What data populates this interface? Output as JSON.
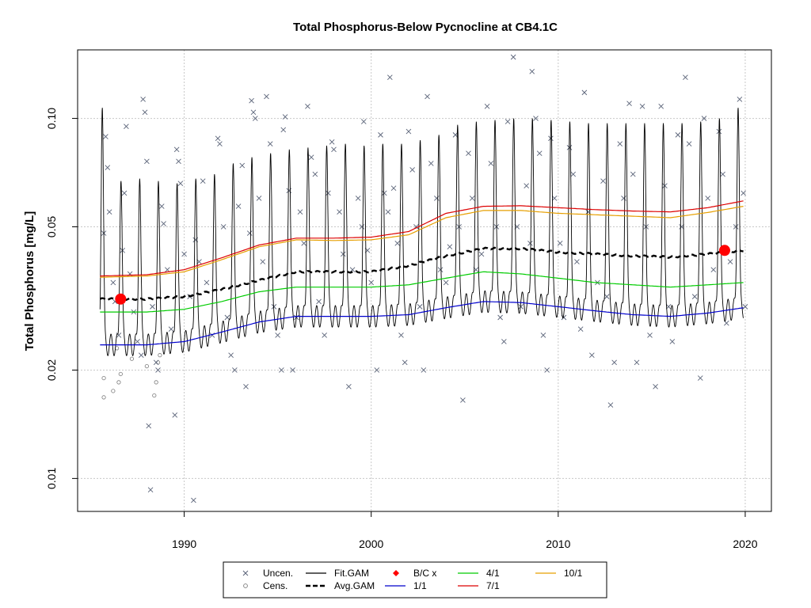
{
  "chart_data": {
    "type": "scatter",
    "title": "Total Phosphorus-Below Pycnocline at CB4.1C",
    "xlabel": "",
    "ylabel": "Total Phosphorus [mg/L]",
    "log_y": true,
    "xlim": [
      1984.3,
      2021.4
    ],
    "ylim": [
      0.0081,
      0.155
    ],
    "grid": true,
    "x_ticks": [
      1990,
      2000,
      2010,
      2020
    ],
    "x_tick_labels": [
      "1990",
      "2000",
      "2010",
      "2020"
    ],
    "y_ticks": [
      0.01,
      0.02,
      0.05,
      0.1
    ],
    "y_tick_labels": [
      "0.01",
      "0.02",
      "0.05",
      "0.10"
    ],
    "legend": {
      "placement": "bottom-center",
      "entries": [
        {
          "label": "Uncen.",
          "symbol": "x",
          "color": "#5a6378"
        },
        {
          "label": "Cens.",
          "symbol": "circle",
          "color": "#7a7a7a"
        },
        {
          "label": "Fit.GAM",
          "symbol": "line",
          "color": "#000000"
        },
        {
          "label": "Avg.GAM",
          "symbol": "dashed",
          "color": "#000000"
        },
        {
          "label": "B/C x",
          "symbol": "diamond",
          "color": "#ff0000"
        },
        {
          "label": "1/1",
          "symbol": "line",
          "color": "#0000cc"
        },
        {
          "label": "4/1",
          "symbol": "line",
          "color": "#00cc00"
        },
        {
          "label": "7/1",
          "symbol": "line",
          "color": "#dd0000"
        },
        {
          "label": "10/1",
          "symbol": "line",
          "color": "#e69f00"
        }
      ]
    },
    "colors": {
      "uncensored": "#5a6378",
      "censored": "#7a7a7a",
      "fit": "#000000",
      "avg": "#000000",
      "bc": "#ff0000",
      "jan1": "#0000cc",
      "apr1": "#00cc00",
      "jul1": "#dd0000",
      "oct1": "#e69f00"
    },
    "seasonal_curves": {
      "x": [
        1985.5,
        1988,
        1990,
        1992,
        1994,
        1996,
        1998,
        2000,
        2002,
        2004,
        2006,
        2008,
        2010,
        2012,
        2014,
        2016,
        2018,
        2019.9
      ],
      "jan1": [
        0.0235,
        0.0235,
        0.024,
        0.0255,
        0.0272,
        0.0282,
        0.0282,
        0.0282,
        0.0285,
        0.0298,
        0.031,
        0.0308,
        0.03,
        0.0292,
        0.0285,
        0.0282,
        0.0288,
        0.0298
      ],
      "apr1": [
        0.029,
        0.029,
        0.0295,
        0.031,
        0.033,
        0.034,
        0.034,
        0.034,
        0.0345,
        0.036,
        0.0375,
        0.037,
        0.036,
        0.035,
        0.0345,
        0.034,
        0.0345,
        0.035
      ],
      "jul1": [
        0.0365,
        0.0368,
        0.038,
        0.041,
        0.0445,
        0.0465,
        0.0465,
        0.0468,
        0.0485,
        0.0545,
        0.057,
        0.0572,
        0.0565,
        0.0558,
        0.0553,
        0.055,
        0.0565,
        0.059
      ],
      "oct1": [
        0.0362,
        0.0365,
        0.0375,
        0.0405,
        0.044,
        0.046,
        0.0458,
        0.046,
        0.0475,
        0.053,
        0.0555,
        0.0555,
        0.0545,
        0.054,
        0.0535,
        0.053,
        0.0548,
        0.057
      ]
    },
    "avg_gam": {
      "x": [
        1985.5,
        1988,
        1990,
        1992,
        1994,
        1996,
        1998,
        2000,
        2002,
        2004,
        2006,
        2008,
        2010,
        2012,
        2014,
        2016,
        2018,
        2019.9
      ],
      "y": [
        0.0315,
        0.0315,
        0.032,
        0.0335,
        0.0355,
        0.0375,
        0.0375,
        0.0375,
        0.039,
        0.0415,
        0.0435,
        0.0435,
        0.0425,
        0.042,
        0.0415,
        0.0412,
        0.042,
        0.043
      ]
    },
    "fit_gam": {
      "start_year": 1985.5,
      "end_year": 2019.9,
      "peak_years": [
        1986.0,
        1987.0,
        1988.0,
        1989.0,
        1990.0,
        1991.0,
        1992.0,
        1993.0,
        1994.0,
        1995.0,
        1996.0,
        1997.0,
        1998.0,
        1999.0,
        2000.0,
        2001.0,
        2002.0,
        2003.0,
        2004.0,
        2005.0,
        2006.0,
        2007.0,
        2008.0,
        2009.0,
        2010.0,
        2011.0,
        2012.0,
        2013.0,
        2014.0,
        2015.0,
        2016.0,
        2017.0,
        2018.0,
        2019.0
      ],
      "peak_values": [
        0.067,
        0.068,
        0.067,
        0.066,
        0.068,
        0.07,
        0.075,
        0.078,
        0.08,
        0.082,
        0.083,
        0.084,
        0.085,
        0.084,
        0.085,
        0.085,
        0.087,
        0.09,
        0.096,
        0.098,
        0.099,
        0.1,
        0.1,
        0.099,
        0.098,
        0.097,
        0.097,
        0.097,
        0.097,
        0.097,
        0.097,
        0.098,
        0.1,
        0.107
      ]
    },
    "bc_points": [
      {
        "x": 1986.6,
        "y": 0.0315
      },
      {
        "x": 2018.9,
        "y": 0.043
      }
    ],
    "uncensored_points": [
      [
        1985.7,
        0.048
      ],
      [
        1985.8,
        0.089
      ],
      [
        1985.9,
        0.073
      ],
      [
        1986.0,
        0.055
      ],
      [
        1986.2,
        0.035
      ],
      [
        1986.3,
        0.031
      ],
      [
        1986.5,
        0.025
      ],
      [
        1986.7,
        0.043
      ],
      [
        1986.8,
        0.062
      ],
      [
        1986.9,
        0.095
      ],
      [
        1987.1,
        0.037
      ],
      [
        1987.3,
        0.029
      ],
      [
        1987.5,
        0.024
      ],
      [
        1987.7,
        0.022
      ],
      [
        1987.8,
        0.113
      ],
      [
        1987.9,
        0.104
      ],
      [
        1988.0,
        0.076
      ],
      [
        1988.1,
        0.014
      ],
      [
        1988.2,
        0.0093
      ],
      [
        1988.3,
        0.03
      ],
      [
        1988.5,
        0.021
      ],
      [
        1988.6,
        0.02
      ],
      [
        1988.8,
        0.057
      ],
      [
        1988.9,
        0.051
      ],
      [
        1989.1,
        0.038
      ],
      [
        1989.3,
        0.026
      ],
      [
        1989.5,
        0.015
      ],
      [
        1989.6,
        0.082
      ],
      [
        1989.7,
        0.076
      ],
      [
        1989.8,
        0.066
      ],
      [
        1990.0,
        0.042
      ],
      [
        1990.3,
        0.032
      ],
      [
        1990.5,
        0.0087
      ],
      [
        1990.6,
        0.046
      ],
      [
        1990.8,
        0.04
      ],
      [
        1991.0,
        0.067
      ],
      [
        1991.2,
        0.035
      ],
      [
        1991.5,
        0.025
      ],
      [
        1991.8,
        0.088
      ],
      [
        1991.9,
        0.085
      ],
      [
        1992.1,
        0.05
      ],
      [
        1992.3,
        0.028
      ],
      [
        1992.5,
        0.022
      ],
      [
        1992.7,
        0.02
      ],
      [
        1992.9,
        0.057
      ],
      [
        1993.1,
        0.074
      ],
      [
        1993.3,
        0.018
      ],
      [
        1993.5,
        0.048
      ],
      [
        1993.6,
        0.112
      ],
      [
        1993.7,
        0.104
      ],
      [
        1993.8,
        0.1
      ],
      [
        1994.0,
        0.06
      ],
      [
        1994.2,
        0.04
      ],
      [
        1994.4,
        0.115
      ],
      [
        1994.6,
        0.085
      ],
      [
        1994.8,
        0.03
      ],
      [
        1995.0,
        0.025
      ],
      [
        1995.2,
        0.02
      ],
      [
        1995.3,
        0.093
      ],
      [
        1995.4,
        0.101
      ],
      [
        1995.6,
        0.063
      ],
      [
        1995.8,
        0.02
      ],
      [
        1996.0,
        0.028
      ],
      [
        1996.2,
        0.055
      ],
      [
        1996.4,
        0.045
      ],
      [
        1996.6,
        0.108
      ],
      [
        1996.8,
        0.078
      ],
      [
        1997.0,
        0.07
      ],
      [
        1997.2,
        0.031
      ],
      [
        1997.5,
        0.025
      ],
      [
        1997.7,
        0.062
      ],
      [
        1997.9,
        0.086
      ],
      [
        1998.0,
        0.082
      ],
      [
        1998.3,
        0.055
      ],
      [
        1998.5,
        0.042
      ],
      [
        1998.8,
        0.018
      ],
      [
        1999.0,
        0.038
      ],
      [
        1999.3,
        0.06
      ],
      [
        1999.5,
        0.05
      ],
      [
        1999.6,
        0.098
      ],
      [
        1999.8,
        0.043
      ],
      [
        2000.0,
        0.035
      ],
      [
        2000.3,
        0.02
      ],
      [
        2000.5,
        0.09
      ],
      [
        2000.7,
        0.062
      ],
      [
        2000.9,
        0.055
      ],
      [
        2001.0,
        0.13
      ],
      [
        2001.2,
        0.064
      ],
      [
        2001.4,
        0.045
      ],
      [
        2001.6,
        0.025
      ],
      [
        2001.8,
        0.021
      ],
      [
        2002.0,
        0.092
      ],
      [
        2002.2,
        0.072
      ],
      [
        2002.4,
        0.05
      ],
      [
        2002.6,
        0.03
      ],
      [
        2002.8,
        0.02
      ],
      [
        2003.0,
        0.115
      ],
      [
        2003.2,
        0.075
      ],
      [
        2003.5,
        0.06
      ],
      [
        2003.7,
        0.038
      ],
      [
        2004.0,
        0.035
      ],
      [
        2004.2,
        0.044
      ],
      [
        2004.5,
        0.09
      ],
      [
        2004.7,
        0.05
      ],
      [
        2004.9,
        0.0165
      ],
      [
        2005.2,
        0.08
      ],
      [
        2005.4,
        0.06
      ],
      [
        2005.6,
        0.038
      ],
      [
        2005.9,
        0.042
      ],
      [
        2006.2,
        0.108
      ],
      [
        2006.4,
        0.075
      ],
      [
        2006.7,
        0.05
      ],
      [
        2006.9,
        0.028
      ],
      [
        2007.1,
        0.024
      ],
      [
        2007.3,
        0.098
      ],
      [
        2007.6,
        0.148
      ],
      [
        2007.8,
        0.05
      ],
      [
        2008.0,
        0.03
      ],
      [
        2008.3,
        0.065
      ],
      [
        2008.5,
        0.045
      ],
      [
        2008.6,
        0.135
      ],
      [
        2008.8,
        0.1
      ],
      [
        2009.0,
        0.08
      ],
      [
        2009.2,
        0.025
      ],
      [
        2009.4,
        0.02
      ],
      [
        2009.6,
        0.088
      ],
      [
        2009.8,
        0.06
      ],
      [
        2010.1,
        0.045
      ],
      [
        2010.3,
        0.028
      ],
      [
        2010.6,
        0.083
      ],
      [
        2010.8,
        0.07
      ],
      [
        2011.0,
        0.04
      ],
      [
        2011.2,
        0.026
      ],
      [
        2011.4,
        0.118
      ],
      [
        2011.6,
        0.055
      ],
      [
        2011.8,
        0.022
      ],
      [
        2012.1,
        0.035
      ],
      [
        2012.4,
        0.067
      ],
      [
        2012.6,
        0.032
      ],
      [
        2012.8,
        0.016
      ],
      [
        2013.0,
        0.021
      ],
      [
        2013.3,
        0.085
      ],
      [
        2013.5,
        0.06
      ],
      [
        2013.8,
        0.11
      ],
      [
        2014.0,
        0.07
      ],
      [
        2014.2,
        0.021
      ],
      [
        2014.5,
        0.108
      ],
      [
        2014.7,
        0.05
      ],
      [
        2014.9,
        0.025
      ],
      [
        2015.2,
        0.018
      ],
      [
        2015.5,
        0.108
      ],
      [
        2015.7,
        0.065
      ],
      [
        2015.9,
        0.03
      ],
      [
        2016.1,
        0.024
      ],
      [
        2016.4,
        0.09
      ],
      [
        2016.6,
        0.05
      ],
      [
        2016.8,
        0.13
      ],
      [
        2017.0,
        0.085
      ],
      [
        2017.3,
        0.032
      ],
      [
        2017.6,
        0.019
      ],
      [
        2017.8,
        0.1
      ],
      [
        2018.0,
        0.06
      ],
      [
        2018.3,
        0.038
      ],
      [
        2018.6,
        0.092
      ],
      [
        2018.8,
        0.07
      ],
      [
        2019.0,
        0.027
      ],
      [
        2019.2,
        0.04
      ],
      [
        2019.5,
        0.05
      ],
      [
        2019.7,
        0.113
      ],
      [
        2019.9,
        0.062
      ],
      [
        2020.0,
        0.03
      ]
    ],
    "censored_points": [
      [
        1985.7,
        0.0168
      ],
      [
        1985.7,
        0.019
      ],
      [
        1986.2,
        0.0175
      ],
      [
        1986.4,
        0.023
      ],
      [
        1986.5,
        0.0185
      ],
      [
        1986.6,
        0.0195
      ],
      [
        1987.2,
        0.0215
      ],
      [
        1988.0,
        0.0205
      ],
      [
        1988.4,
        0.017
      ],
      [
        1988.5,
        0.0185
      ],
      [
        1988.6,
        0.021
      ],
      [
        1988.7,
        0.022
      ]
    ]
  }
}
